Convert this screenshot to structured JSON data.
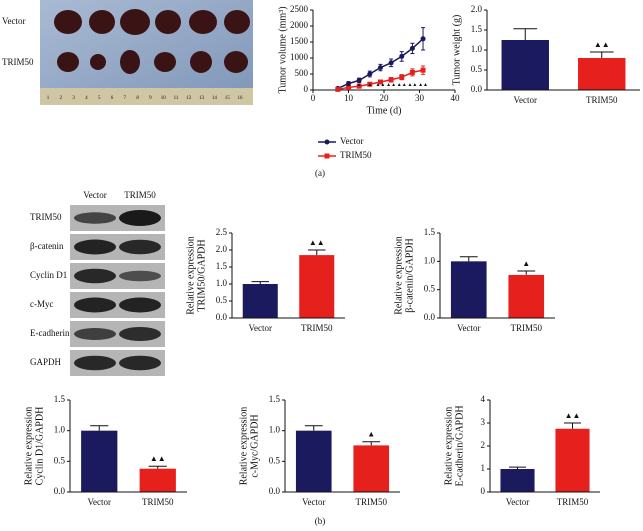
{
  "panel_a": {
    "photo_labels": [
      "Vector",
      "TRIM50"
    ],
    "ruler_labels": [
      1,
      2,
      3,
      4,
      5,
      6,
      7,
      8,
      9,
      10,
      11,
      12,
      13,
      14,
      15,
      16
    ],
    "caption": "(a)"
  },
  "panel_b": {
    "blot_headers": [
      "Vector",
      "TRIM50"
    ],
    "blot_rows": [
      "TRIM50",
      "β-catenin",
      "Cyclin D1",
      "c-Myc",
      "E-cadherin",
      "GAPDH"
    ],
    "caption": "(b)"
  },
  "chart_data": [
    {
      "type": "line",
      "x_label": "Time (d)",
      "y_label": [
        "Tumor volume (mm³)"
      ],
      "x": [
        7,
        10,
        13,
        16,
        19,
        22,
        25,
        28,
        31
      ],
      "series": [
        {
          "name": "Vector",
          "color": "#1c1a5e",
          "marker": "circle",
          "values": [
            50,
            200,
            300,
            500,
            700,
            850,
            1050,
            1300,
            1600
          ],
          "errors": [
            30,
            60,
            70,
            90,
            100,
            120,
            150,
            160,
            350
          ]
        },
        {
          "name": "TRIM50",
          "color": "#e5201d",
          "marker": "square",
          "values": [
            20,
            80,
            120,
            180,
            250,
            320,
            400,
            550,
            620
          ],
          "errors": [
            15,
            30,
            40,
            50,
            60,
            70,
            80,
            110,
            130
          ]
        }
      ],
      "xlim": [
        0,
        40
      ],
      "xticks": [
        0,
        10,
        20,
        30,
        40
      ],
      "ylim": [
        0,
        2500
      ],
      "yticks": [
        0,
        500,
        1000,
        1500,
        2000,
        2500
      ],
      "annotations": [
        {
          "x": 10,
          "text": "▲"
        },
        {
          "x": 13,
          "text": "▲"
        },
        {
          "x": 16,
          "text": "▲"
        },
        {
          "x": 19,
          "text": "▲▲"
        },
        {
          "x": 22,
          "text": "▲▲"
        },
        {
          "x": 25,
          "text": "▲▲"
        },
        {
          "x": 28,
          "text": "▲▲"
        },
        {
          "x": 31,
          "text": "▲▲"
        }
      ]
    },
    {
      "type": "bar",
      "y_label": [
        "Tumor weight (g)"
      ],
      "categories": [
        "Vector",
        "TRIM50"
      ],
      "values": [
        1.25,
        0.8
      ],
      "errors": [
        0.28,
        0.15
      ],
      "colors": [
        "#1c1a5e",
        "#e5201d"
      ],
      "ylim": [
        0,
        2
      ],
      "yticks": [
        {
          "value": 0,
          "label": "0.0"
        },
        {
          "value": 0.5,
          "label": "0.5"
        },
        {
          "value": 1,
          "label": "1.0"
        },
        {
          "value": 1.5,
          "label": "1.5"
        },
        {
          "value": 2,
          "label": "2.0"
        }
      ],
      "annotations": [
        {
          "category": "TRIM50",
          "text": "▲▲"
        }
      ]
    },
    {
      "type": "bar",
      "y_label": [
        "Relative expression",
        "TRIM50/GAPDH"
      ],
      "categories": [
        "Vector",
        "TRIM50"
      ],
      "values": [
        1.0,
        1.85
      ],
      "errors": [
        0.07,
        0.15
      ],
      "colors": [
        "#1c1a5e",
        "#e5201d"
      ],
      "ylim": [
        0,
        2.5
      ],
      "yticks": [
        {
          "value": 0,
          "label": "0.0"
        },
        {
          "value": 0.5,
          "label": "0.5"
        },
        {
          "value": 1,
          "label": "1.0"
        },
        {
          "value": 1.5,
          "label": "1.5"
        },
        {
          "value": 2,
          "label": "2.0"
        },
        {
          "value": 2.5,
          "label": "2.5"
        }
      ],
      "annotations": [
        {
          "category": "TRIM50",
          "text": "▲▲"
        }
      ]
    },
    {
      "type": "bar",
      "y_label": [
        "Relative expression",
        "β-catenin/GAPDH"
      ],
      "categories": [
        "Vector",
        "TRIM50"
      ],
      "values": [
        1.0,
        0.76
      ],
      "errors": [
        0.08,
        0.07
      ],
      "colors": [
        "#1c1a5e",
        "#e5201d"
      ],
      "ylim": [
        0,
        1.5
      ],
      "yticks": [
        {
          "value": 0,
          "label": "0.0"
        },
        {
          "value": 0.5,
          "label": "0.5"
        },
        {
          "value": 1,
          "label": "1.0"
        },
        {
          "value": 1.5,
          "label": "1.5"
        }
      ],
      "annotations": [
        {
          "category": "TRIM50",
          "text": "▲"
        }
      ]
    },
    {
      "type": "bar",
      "y_label": [
        "Relative expression",
        "Cyclin D1/GAPDH"
      ],
      "categories": [
        "Vector",
        "TRIM50"
      ],
      "values": [
        1.0,
        0.38
      ],
      "errors": [
        0.08,
        0.04
      ],
      "colors": [
        "#1c1a5e",
        "#e5201d"
      ],
      "ylim": [
        0,
        1.5
      ],
      "yticks": [
        {
          "value": 0,
          "label": "0.0"
        },
        {
          "value": 0.5,
          "label": "0.5"
        },
        {
          "value": 1,
          "label": "1.0"
        },
        {
          "value": 1.5,
          "label": "1.5"
        }
      ],
      "annotations": [
        {
          "category": "TRIM50",
          "text": "▲▲"
        }
      ]
    },
    {
      "type": "bar",
      "y_label": [
        "Relative expression",
        "c-Myc/GAPDH"
      ],
      "categories": [
        "Vector",
        "TRIM50"
      ],
      "values": [
        1.0,
        0.76
      ],
      "errors": [
        0.08,
        0.06
      ],
      "colors": [
        "#1c1a5e",
        "#e5201d"
      ],
      "ylim": [
        0,
        1.5
      ],
      "yticks": [
        {
          "value": 0,
          "label": "0.0"
        },
        {
          "value": 0.5,
          "label": "0.5"
        },
        {
          "value": 1,
          "label": "1.0"
        },
        {
          "value": 1.5,
          "label": "1.5"
        }
      ],
      "annotations": [
        {
          "category": "TRIM50",
          "text": "▲"
        }
      ]
    },
    {
      "type": "bar",
      "y_label": [
        "Relative expression",
        "E-cadherin/GAPDH"
      ],
      "categories": [
        "Vector",
        "TRIM50"
      ],
      "values": [
        1.0,
        2.75
      ],
      "errors": [
        0.08,
        0.25
      ],
      "colors": [
        "#1c1a5e",
        "#e5201d"
      ],
      "ylim": [
        0,
        4
      ],
      "yticks": [
        0,
        1,
        2,
        3,
        4
      ],
      "annotations": [
        {
          "category": "TRIM50",
          "text": "▲▲"
        }
      ]
    }
  ]
}
